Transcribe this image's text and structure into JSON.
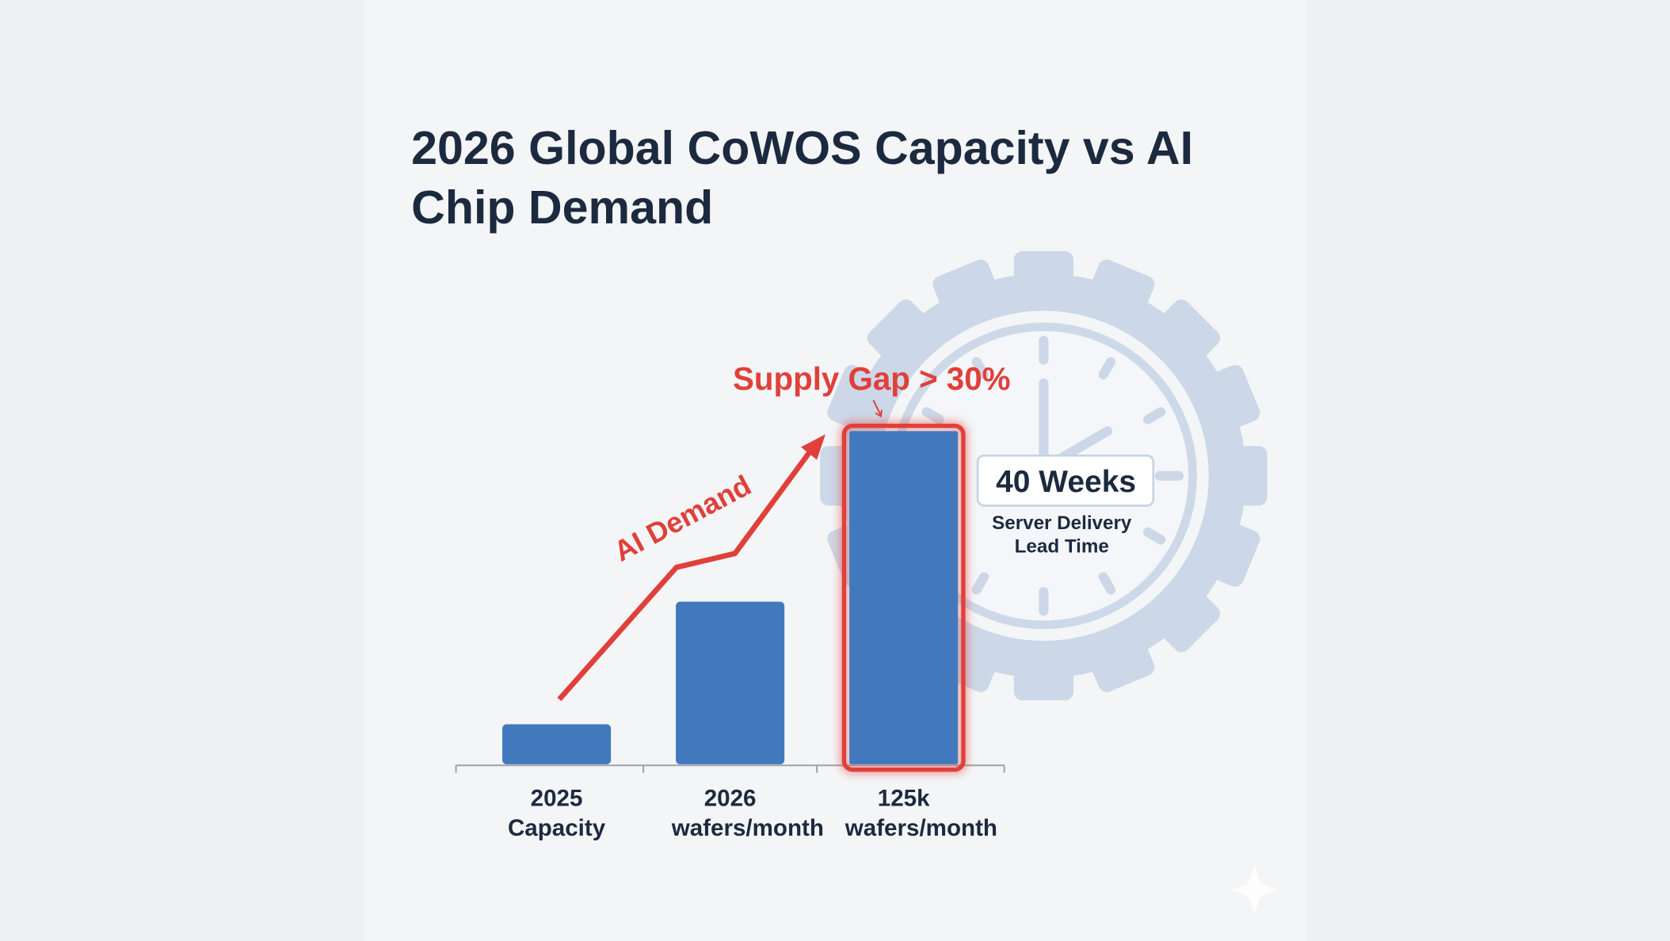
{
  "chart_data": {
    "type": "bar",
    "title": "2026 Global CoWOS Capacity vs AI Chip Demand",
    "categories": [
      "2025 Capacity",
      "2026 wafers/month",
      "125k wafers/month"
    ],
    "values": [
      15,
      61,
      125
    ],
    "color": "#4279bd",
    "highlight": 2,
    "highlight_color": "#e0403a",
    "ylim": [
      0,
      125
    ],
    "annotations": {
      "gap": "Supply Gap > 30%",
      "trend": "AI Demand",
      "lead_time": "40 Weeks",
      "lead_time_label": "Server Delivery Lead Time"
    }
  }
}
